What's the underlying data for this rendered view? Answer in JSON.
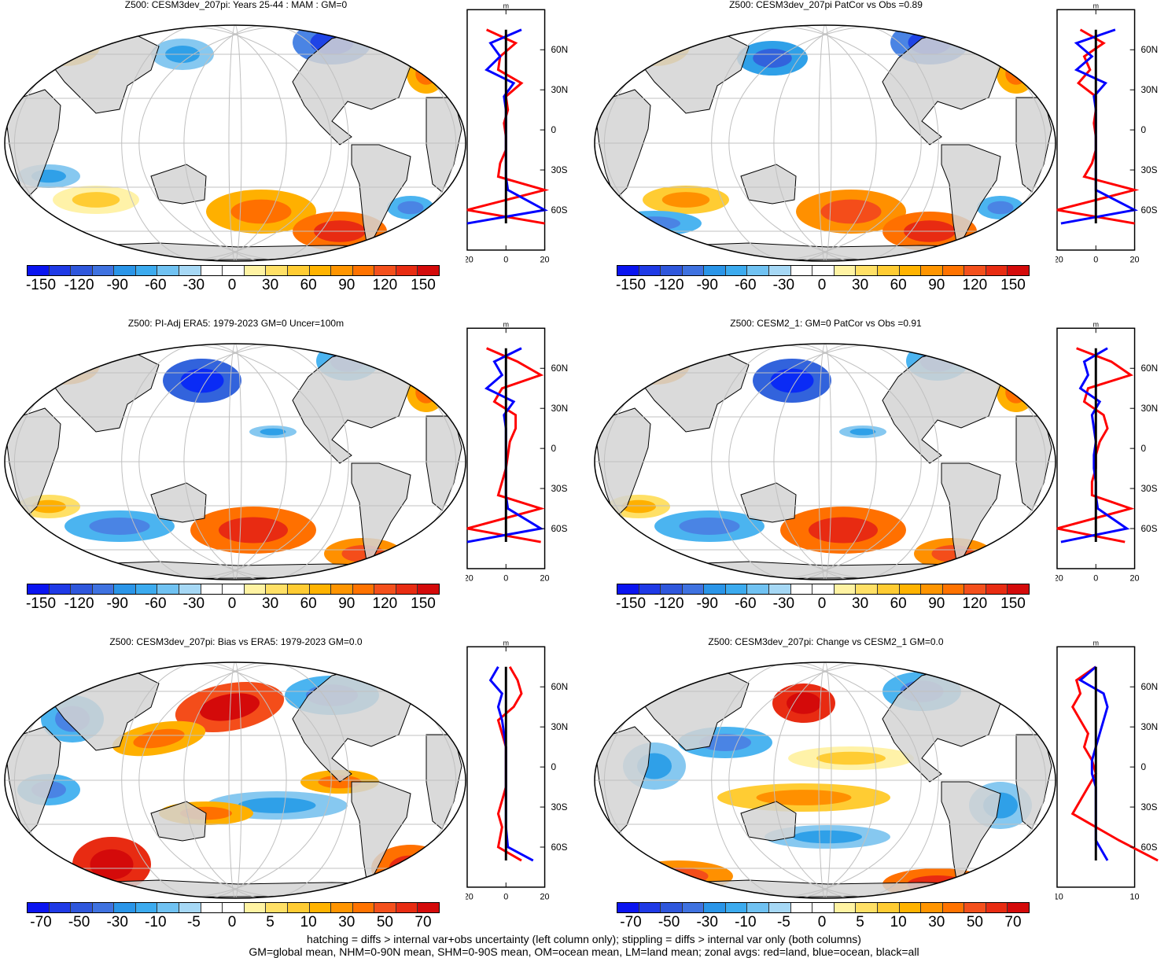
{
  "panels": [
    {
      "title": "Z500: CESM3dev_207pi: Years 25-44 : MAM : GM=0",
      "levels": [
        "-150",
        "-120",
        "-90",
        "-60",
        "-30",
        "0",
        "30",
        "60",
        "90",
        "120",
        "150"
      ],
      "zonal_ticks": [
        "-20",
        "0",
        "20"
      ]
    },
    {
      "title": "Z500: CESM3dev_207pi PatCor vs Obs =0.89",
      "levels": [
        "-150",
        "-120",
        "-90",
        "-60",
        "-30",
        "0",
        "30",
        "60",
        "90",
        "120",
        "150"
      ],
      "zonal_ticks": [
        "-20",
        "0",
        "20"
      ]
    },
    {
      "title": "Z500: PI-Adj ERA5: 1979-2023 GM=0 Uncer=100m",
      "levels": [
        "-150",
        "-120",
        "-90",
        "-60",
        "-30",
        "0",
        "30",
        "60",
        "90",
        "120",
        "150"
      ],
      "zonal_ticks": [
        "-20",
        "0",
        "20"
      ]
    },
    {
      "title": "Z500: CESM2_1: GM=0 PatCor vs Obs =0.91",
      "levels": [
        "-150",
        "-120",
        "-90",
        "-60",
        "-30",
        "0",
        "30",
        "60",
        "90",
        "120",
        "150"
      ],
      "zonal_ticks": [
        "-20",
        "0",
        "20"
      ]
    },
    {
      "title": "Z500: CESM3dev_207pi: Bias vs ERA5: 1979-2023 GM=0.0",
      "levels": [
        "-70",
        "-50",
        "-30",
        "-10",
        "-5",
        "0",
        "5",
        "10",
        "30",
        "50",
        "70"
      ],
      "zonal_ticks": [
        "-20",
        "0",
        "20"
      ]
    },
    {
      "title": "Z500: CESM3dev_207pi: Change vs CESM2_1 GM=0.0",
      "levels": [
        "-70",
        "-50",
        "-30",
        "-10",
        "-5",
        "0",
        "5",
        "10",
        "30",
        "50",
        "70"
      ],
      "zonal_ticks": [
        "-10",
        "10"
      ]
    }
  ],
  "zonal_unit": "m",
  "lat_labels": [
    "60N",
    "30N",
    "0",
    "30S",
    "60S"
  ],
  "colors": {
    "palette": [
      "#0a2bf5",
      "#1f44e6",
      "#3263dc",
      "#4a84e4",
      "#2fa0e8",
      "#4bb4f0",
      "#86c8f0",
      "#b6dcf5",
      "#ffffff",
      "#ffffff",
      "#fff2a8",
      "#ffe066",
      "#ffcc33",
      "#ffb000",
      "#ff9000",
      "#ff7000",
      "#f44d1a",
      "#e82b12",
      "#d40a0a"
    ],
    "land": "#d3d3d3",
    "land_line": "#7a7a7a",
    "grid": "#c0c0c0",
    "zonal_land": "#ff0000",
    "zonal_ocean": "#0000ff",
    "zonal_all": "#000000"
  },
  "footer": {
    "line1": "hatching = diffs > internal var+obs uncertainty (left column only); stippling = diffs > internal var only (both columns)",
    "line2": "GM=global mean, NHM=0-90N mean, SHM=0-90S mean, OM=ocean mean, LM=land mean; zonal avgs: red=land, blue=ocean, black=all"
  },
  "chart_data": [
    {
      "type": "heatmap",
      "title": "Z500: CESM3dev_207pi: Years 25-44 : MAM : GM=0",
      "units": "m",
      "levels": [
        -150,
        -120,
        -90,
        -60,
        -30,
        0,
        30,
        60,
        90,
        120,
        150
      ],
      "zonal_profile": {
        "xlim": [
          -20,
          20
        ],
        "ylim": [
          -90,
          90
        ],
        "xticks": [
          -20,
          0,
          20
        ],
        "yticks": [
          "60N",
          "30N",
          "0",
          "30S",
          "60S"
        ],
        "series": [
          {
            "name": "land",
            "color": "red",
            "lat": [
              75,
              65,
              55,
              45,
              35,
              25,
              15,
              5,
              -5,
              -15,
              -25,
              -35,
              -45,
              -60,
              -70
            ],
            "values": [
              -10,
              5,
              -3,
              -4,
              8,
              0,
              1,
              -1,
              0,
              0,
              -3,
              -4,
              20,
              -20,
              20
            ]
          },
          {
            "name": "ocean",
            "color": "blue",
            "lat": [
              75,
              65,
              55,
              45,
              35,
              25,
              15,
              5,
              -5,
              -15,
              -25,
              -35,
              -45,
              -60,
              -70
            ],
            "values": [
              8,
              -8,
              -3,
              -10,
              4,
              -1,
              0,
              0,
              0,
              0,
              0,
              0,
              1,
              20,
              -20
            ]
          },
          {
            "name": "all",
            "color": "black",
            "lat": [
              75,
              65,
              55,
              45,
              35,
              25,
              15,
              5,
              -5,
              -15,
              -25,
              -35,
              -45,
              -60,
              -70
            ],
            "values": [
              0,
              0,
              0,
              0,
              0,
              0,
              0,
              0,
              0,
              0,
              0,
              0,
              0,
              0,
              0
            ]
          }
        ]
      }
    },
    {
      "type": "heatmap",
      "title": "Z500: CESM3dev_207pi PatCor vs Obs =0.89",
      "units": "m",
      "levels": [
        -150,
        -120,
        -90,
        -60,
        -30,
        0,
        30,
        60,
        90,
        120,
        150
      ],
      "zonal_profile": {
        "xlim": [
          -20,
          20
        ],
        "ylim": [
          -90,
          90
        ],
        "xticks": [
          -20,
          0,
          20
        ],
        "yticks": [
          "60N",
          "30N",
          "0",
          "30S",
          "60S"
        ],
        "series": [
          {
            "name": "land",
            "color": "red",
            "lat": [
              75,
              65,
              55,
              45,
              35,
              25,
              15,
              5,
              -5,
              -15,
              -25,
              -35,
              -45,
              -60,
              -70
            ],
            "values": [
              -8,
              4,
              -6,
              -3,
              -9,
              0,
              0,
              -1,
              0,
              0,
              -2,
              -6,
              20,
              -20,
              20
            ]
          },
          {
            "name": "ocean",
            "color": "blue",
            "lat": [
              75,
              65,
              55,
              45,
              35,
              25,
              15,
              5,
              -5,
              -15,
              -25,
              -35,
              -45,
              -60,
              -70
            ],
            "values": [
              10,
              -10,
              -2,
              -10,
              5,
              -1,
              0,
              0,
              0,
              0,
              0,
              0,
              0,
              20,
              -18
            ]
          },
          {
            "name": "all",
            "color": "black",
            "lat": [
              75,
              65,
              55,
              45,
              35,
              25,
              15,
              5,
              -5,
              -15,
              -25,
              -35,
              -45,
              -60,
              -70
            ],
            "values": [
              0,
              0,
              0,
              0,
              0,
              0,
              0,
              0,
              0,
              0,
              0,
              0,
              0,
              0,
              0
            ]
          }
        ]
      }
    },
    {
      "type": "heatmap",
      "title": "Z500: PI-Adj ERA5: 1979-2023 GM=0 Uncer=100m",
      "units": "m",
      "levels": [
        -150,
        -120,
        -90,
        -60,
        -30,
        0,
        30,
        60,
        90,
        120,
        150
      ],
      "zonal_profile": {
        "xlim": [
          -20,
          20
        ],
        "ylim": [
          -90,
          90
        ],
        "xticks": [
          -20,
          0,
          20
        ],
        "yticks": [
          "60N",
          "30N",
          "0",
          "30S",
          "60S"
        ],
        "series": [
          {
            "name": "land",
            "color": "red",
            "lat": [
              75,
              65,
              55,
              45,
              35,
              25,
              15,
              5,
              -5,
              -15,
              -25,
              -35,
              -45,
              -60,
              -70
            ],
            "values": [
              -10,
              6,
              18,
              -2,
              -6,
              5,
              5,
              2,
              1,
              0,
              -2,
              -4,
              18,
              -20,
              18
            ]
          },
          {
            "name": "ocean",
            "color": "blue",
            "lat": [
              75,
              65,
              55,
              45,
              35,
              25,
              15,
              5,
              -5,
              -15,
              -25,
              -35,
              -45,
              -60,
              -70
            ],
            "values": [
              8,
              -6,
              -2,
              -10,
              4,
              -1,
              0,
              0,
              0,
              0,
              0,
              0,
              1,
              18,
              -20
            ]
          },
          {
            "name": "all",
            "color": "black",
            "lat": [
              75,
              65,
              55,
              45,
              35,
              25,
              15,
              5,
              -5,
              -15,
              -25,
              -35,
              -45,
              -60,
              -70
            ],
            "values": [
              0,
              0,
              0,
              0,
              0,
              0,
              0,
              0,
              0,
              0,
              0,
              0,
              0,
              0,
              0
            ]
          }
        ]
      }
    },
    {
      "type": "heatmap",
      "title": "Z500: CESM2_1: GM=0 PatCor vs Obs =0.91",
      "units": "m",
      "levels": [
        -150,
        -120,
        -90,
        -60,
        -30,
        0,
        30,
        60,
        90,
        120,
        150
      ],
      "zonal_profile": {
        "xlim": [
          -20,
          20
        ],
        "ylim": [
          -90,
          90
        ],
        "xticks": [
          -20,
          0,
          20
        ],
        "yticks": [
          "60N",
          "30N",
          "0",
          "30S",
          "60S"
        ],
        "series": [
          {
            "name": "land",
            "color": "red",
            "lat": [
              75,
              65,
              55,
              45,
              35,
              25,
              15,
              5,
              -5,
              -15,
              -25,
              -35,
              -45,
              -60,
              -70
            ],
            "values": [
              -10,
              8,
              18,
              -4,
              -6,
              4,
              6,
              2,
              0,
              0,
              -2,
              -2,
              18,
              -20,
              15
            ]
          },
          {
            "name": "ocean",
            "color": "blue",
            "lat": [
              75,
              65,
              55,
              45,
              35,
              25,
              15,
              5,
              -5,
              -15,
              -25,
              -35,
              -45,
              -60,
              -70
            ],
            "values": [
              6,
              -6,
              -4,
              -8,
              2,
              -2,
              -1,
              0,
              -1,
              -1,
              0,
              0,
              1,
              16,
              -18
            ]
          },
          {
            "name": "all",
            "color": "black",
            "lat": [
              75,
              65,
              55,
              45,
              35,
              25,
              15,
              5,
              -5,
              -15,
              -25,
              -35,
              -45,
              -60,
              -70
            ],
            "values": [
              0,
              0,
              0,
              0,
              0,
              0,
              0,
              0,
              0,
              0,
              0,
              0,
              0,
              0,
              0
            ]
          }
        ]
      }
    },
    {
      "type": "heatmap",
      "title": "Z500: CESM3dev_207pi: Bias vs ERA5: 1979-2023 GM=0.0",
      "units": "m",
      "levels": [
        -70,
        -50,
        -30,
        -10,
        -5,
        0,
        5,
        10,
        30,
        50,
        70
      ],
      "zonal_profile": {
        "xlim": [
          -20,
          20
        ],
        "ylim": [
          -90,
          90
        ],
        "xticks": [
          -20,
          0,
          20
        ],
        "yticks": [
          "60N",
          "30N",
          "0",
          "30S",
          "60S"
        ],
        "series": [
          {
            "name": "land",
            "color": "red",
            "lat": [
              75,
              65,
              55,
              45,
              35,
              25,
              15,
              5,
              -5,
              -15,
              -25,
              -35,
              -45,
              -60,
              -70
            ],
            "values": [
              2,
              6,
              8,
              4,
              -4,
              -2,
              0,
              0,
              0,
              0,
              -2,
              -4,
              -2,
              -4,
              8
            ]
          },
          {
            "name": "ocean",
            "color": "blue",
            "lat": [
              75,
              65,
              55,
              45,
              35,
              25,
              15,
              5,
              -5,
              -15,
              -25,
              -35,
              -45,
              -60,
              -70
            ],
            "values": [
              -4,
              -8,
              -2,
              -4,
              -2,
              -1,
              0,
              0,
              0,
              0,
              0,
              0,
              0,
              1,
              14
            ]
          },
          {
            "name": "all",
            "color": "black",
            "lat": [
              75,
              65,
              55,
              45,
              35,
              25,
              15,
              5,
              -5,
              -15,
              -25,
              -35,
              -45,
              -60,
              -70
            ],
            "values": [
              0,
              0,
              0,
              0,
              0,
              0,
              0,
              0,
              0,
              0,
              0,
              0,
              0,
              0,
              0
            ]
          }
        ]
      }
    },
    {
      "type": "heatmap",
      "title": "Z500: CESM3dev_207pi: Change vs CESM2_1 GM=0.0",
      "units": "m",
      "levels": [
        -70,
        -50,
        -30,
        -10,
        -5,
        0,
        5,
        10,
        30,
        50,
        70
      ],
      "zonal_profile": {
        "xlim": [
          -10,
          10
        ],
        "ylim": [
          -90,
          90
        ],
        "xticks": [
          -10,
          10
        ],
        "yticks": [
          "60N",
          "30N",
          "0",
          "30S",
          "60S"
        ],
        "series": [
          {
            "name": "land",
            "color": "red",
            "lat": [
              75,
              65,
              55,
              45,
              35,
              25,
              15,
              5,
              -5,
              -15,
              -25,
              -35,
              -45,
              -55,
              -70
            ],
            "values": [
              0,
              -5,
              -4,
              -6,
              -4,
              -2,
              -3,
              -1,
              0,
              -2,
              -4,
              -6,
              0,
              6,
              16
            ]
          },
          {
            "name": "ocean",
            "color": "blue",
            "lat": [
              75,
              65,
              55,
              45,
              35,
              25,
              15,
              5,
              -5,
              -15,
              -25,
              -35,
              -45,
              -55,
              -70
            ],
            "values": [
              0,
              -4,
              2,
              3,
              2,
              1,
              0,
              -1,
              -1,
              0,
              0,
              0,
              0,
              0,
              3
            ]
          },
          {
            "name": "all",
            "color": "black",
            "lat": [
              75,
              65,
              55,
              45,
              35,
              25,
              15,
              5,
              -5,
              -15,
              -25,
              -35,
              -45,
              -55,
              -70
            ],
            "values": [
              0,
              0,
              0,
              0,
              0,
              0,
              0,
              0,
              0,
              0,
              0,
              0,
              0,
              0,
              0
            ]
          }
        ]
      }
    }
  ]
}
